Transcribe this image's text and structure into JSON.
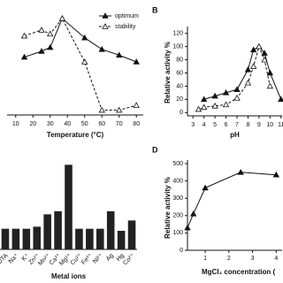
{
  "chart_data": [
    {
      "type": "line",
      "xlabel": "Temperature (°C)",
      "x": [
        15,
        25,
        30,
        37,
        50,
        60,
        70,
        80
      ],
      "series": [
        {
          "name": "optimum",
          "color": "#111111",
          "marker": "triangle-filled",
          "dash": false,
          "values": [
            60,
            66,
            70,
            100,
            80,
            68,
            62,
            55
          ]
        },
        {
          "name": "stability",
          "color": "#111111",
          "marker": "triangle-open",
          "dash": true,
          "values": [
            82,
            88,
            84,
            100,
            55,
            5,
            5,
            10
          ]
        }
      ],
      "xlim": [
        5,
        84
      ],
      "xticks": [
        10,
        20,
        30,
        40,
        50,
        60,
        70,
        80
      ],
      "ylim": [
        0,
        110
      ],
      "legend": "upper right"
    },
    {
      "type": "line",
      "label": "B",
      "xlabel": "pH",
      "ylabel": "Relative activity %",
      "x": [
        3.5,
        4,
        5,
        6,
        7,
        8,
        8.5,
        9,
        9.5,
        10,
        11
      ],
      "series": [
        {
          "color": "#111111",
          "marker": "triangle-filled",
          "dash": false,
          "values": [
            null,
            20,
            25,
            30,
            35,
            65,
            95,
            100,
            90,
            60,
            20
          ]
        },
        {
          "color": "#111111",
          "marker": "triangle-open",
          "dash": true,
          "values": [
            5,
            8,
            10,
            12,
            22,
            45,
            70,
            100,
            80,
            40,
            null
          ]
        }
      ],
      "xlim": [
        2.5,
        11.1
      ],
      "xticks": [
        3,
        4,
        5,
        6,
        7,
        8,
        9,
        10,
        11
      ],
      "ylim": [
        -5,
        125
      ],
      "yticks": [
        0,
        20,
        40,
        60,
        80,
        100,
        120
      ]
    },
    {
      "type": "bar",
      "xlabel": "Metal ions",
      "categories": [
        "DTA",
        "Na⁺",
        "K⁺",
        "Zn²⁺",
        "Mn²⁺",
        "Ca²⁺",
        "Mg²⁺",
        "Cu²⁺",
        "Fe³⁺",
        "Ni²⁺",
        "Ag",
        "Hg",
        "Co²⁺"
      ],
      "values": [
        100,
        100,
        100,
        110,
        170,
        185,
        410,
        100,
        100,
        100,
        185,
        90,
        140
      ],
      "color": "#222222",
      "ylim": [
        0,
        480
      ]
    },
    {
      "type": "line",
      "label": "D",
      "xlabel": "MgCl₂ concentration (",
      "ylabel": "Relative activity %",
      "x": [
        0.25,
        0.5,
        1,
        2.5,
        4
      ],
      "series": [
        {
          "color": "#111111",
          "marker": "triangle-filled",
          "dash": false,
          "values": [
            130,
            210,
            360,
            450,
            435
          ]
        }
      ],
      "xlim": [
        0.25,
        4.25
      ],
      "xticks": [
        1,
        2,
        3,
        4
      ],
      "ylim": [
        0,
        500
      ],
      "yticks": [
        0,
        100,
        200,
        300,
        400,
        500
      ]
    }
  ]
}
